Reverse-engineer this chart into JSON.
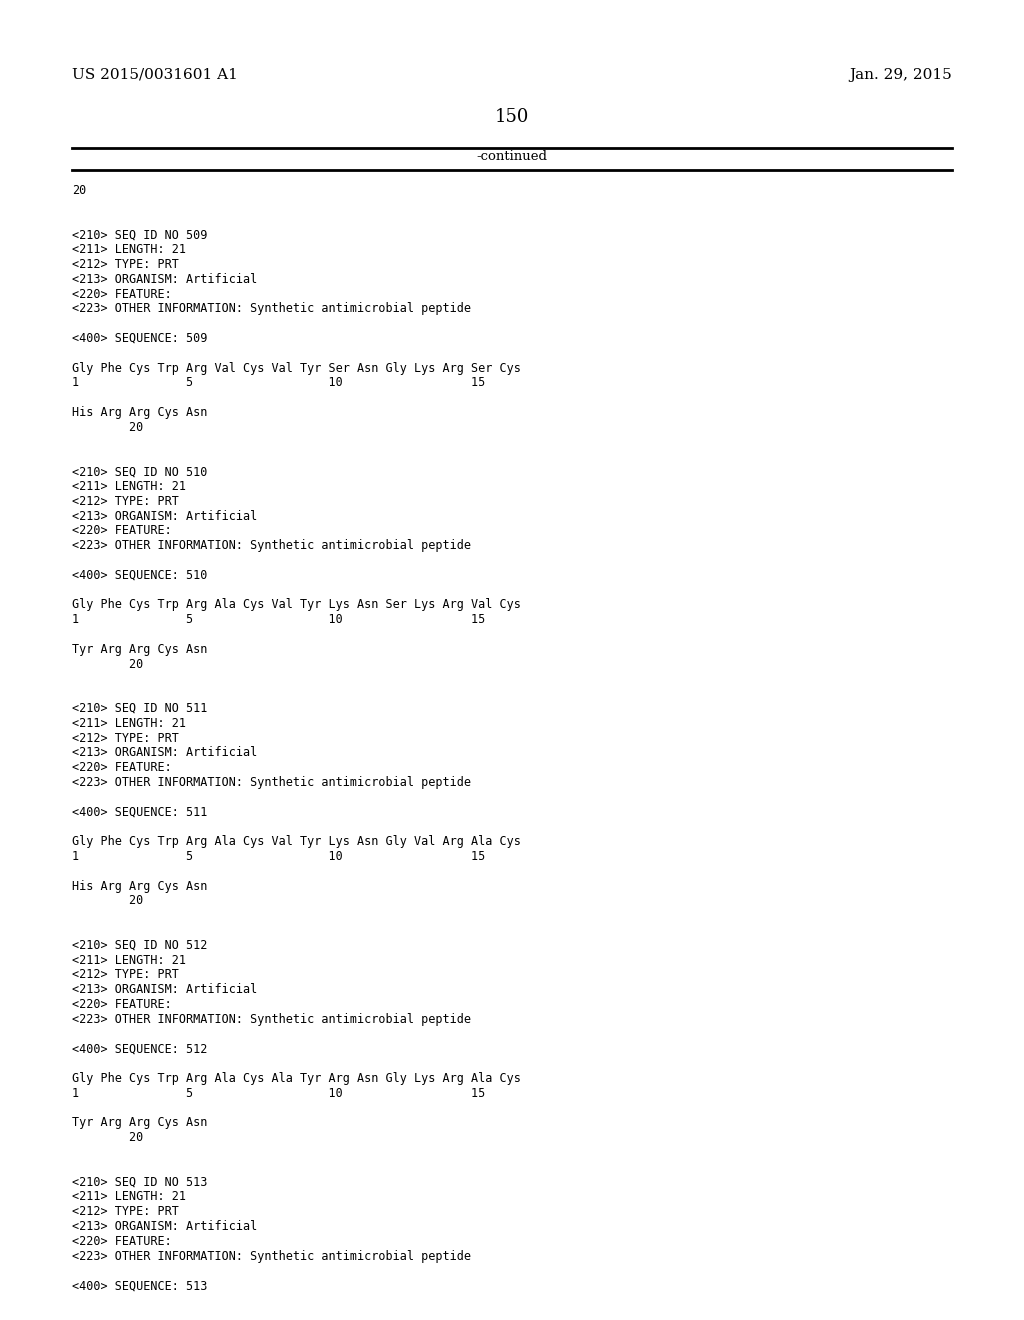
{
  "background_color": "#ffffff",
  "header_left": "US 2015/0031601 A1",
  "header_right": "Jan. 29, 2015",
  "page_number": "150",
  "continued_text": "-continued",
  "content_lines": [
    "20",
    "",
    "",
    "<210> SEQ ID NO 509",
    "<211> LENGTH: 21",
    "<212> TYPE: PRT",
    "<213> ORGANISM: Artificial",
    "<220> FEATURE:",
    "<223> OTHER INFORMATION: Synthetic antimicrobial peptide",
    "",
    "<400> SEQUENCE: 509",
    "",
    "Gly Phe Cys Trp Arg Val Cys Val Tyr Ser Asn Gly Lys Arg Ser Cys",
    "1               5                   10                  15",
    "",
    "His Arg Arg Cys Asn",
    "        20",
    "",
    "",
    "<210> SEQ ID NO 510",
    "<211> LENGTH: 21",
    "<212> TYPE: PRT",
    "<213> ORGANISM: Artificial",
    "<220> FEATURE:",
    "<223> OTHER INFORMATION: Synthetic antimicrobial peptide",
    "",
    "<400> SEQUENCE: 510",
    "",
    "Gly Phe Cys Trp Arg Ala Cys Val Tyr Lys Asn Ser Lys Arg Val Cys",
    "1               5                   10                  15",
    "",
    "Tyr Arg Arg Cys Asn",
    "        20",
    "",
    "",
    "<210> SEQ ID NO 511",
    "<211> LENGTH: 21",
    "<212> TYPE: PRT",
    "<213> ORGANISM: Artificial",
    "<220> FEATURE:",
    "<223> OTHER INFORMATION: Synthetic antimicrobial peptide",
    "",
    "<400> SEQUENCE: 511",
    "",
    "Gly Phe Cys Trp Arg Ala Cys Val Tyr Lys Asn Gly Val Arg Ala Cys",
    "1               5                   10                  15",
    "",
    "His Arg Arg Cys Asn",
    "        20",
    "",
    "",
    "<210> SEQ ID NO 512",
    "<211> LENGTH: 21",
    "<212> TYPE: PRT",
    "<213> ORGANISM: Artificial",
    "<220> FEATURE:",
    "<223> OTHER INFORMATION: Synthetic antimicrobial peptide",
    "",
    "<400> SEQUENCE: 512",
    "",
    "Gly Phe Cys Trp Arg Ala Cys Ala Tyr Arg Asn Gly Lys Arg Ala Cys",
    "1               5                   10                  15",
    "",
    "Tyr Arg Arg Cys Asn",
    "        20",
    "",
    "",
    "<210> SEQ ID NO 513",
    "<211> LENGTH: 21",
    "<212> TYPE: PRT",
    "<213> ORGANISM: Artificial",
    "<220> FEATURE:",
    "<223> OTHER INFORMATION: Synthetic antimicrobial peptide",
    "",
    "<400> SEQUENCE: 513"
  ]
}
